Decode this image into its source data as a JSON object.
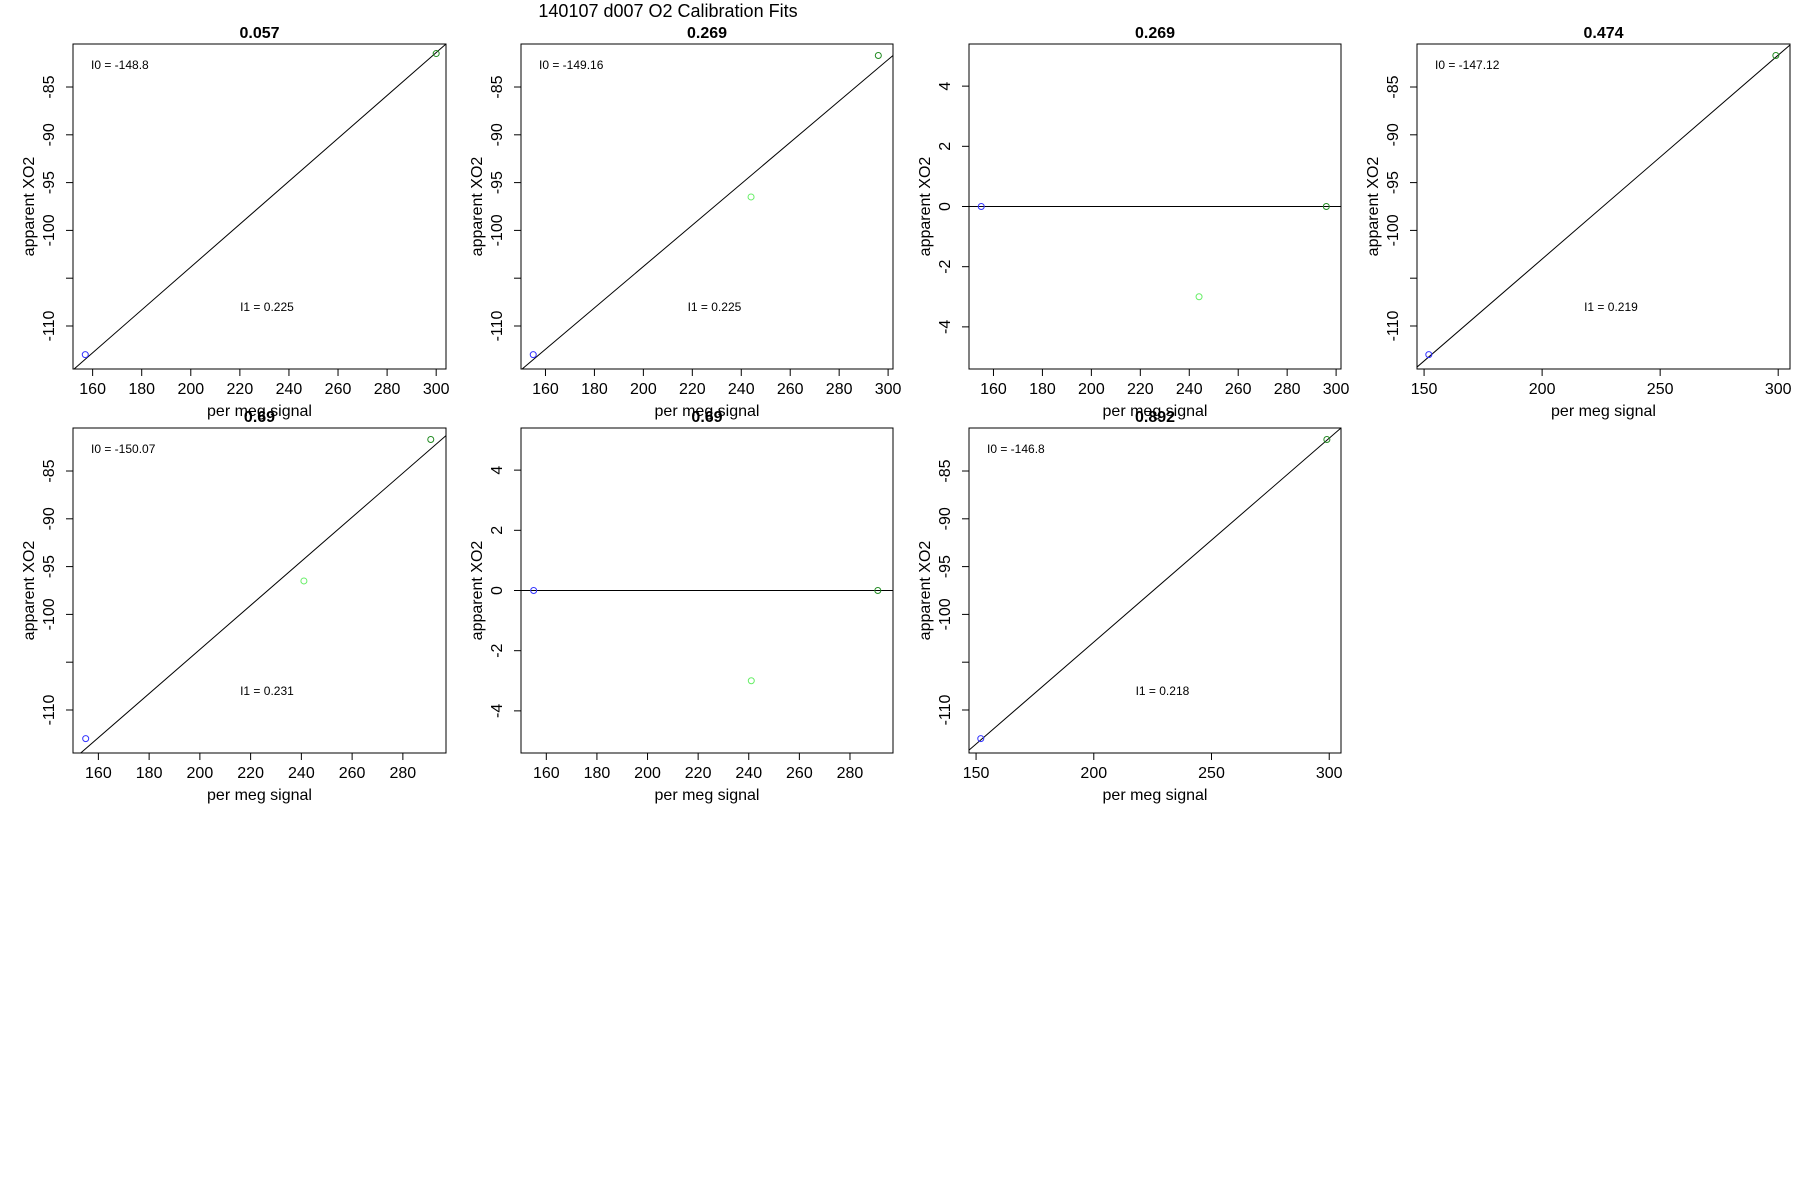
{
  "figure": {
    "title": "140107   d007   O2 Calibration Fits"
  },
  "chart_data": [
    {
      "type": "scatter",
      "title": "0.057",
      "xlabel": "per meg signal",
      "ylabel": "apparent XO2",
      "xlim": [
        152,
        304
      ],
      "ylim": [
        -114.5,
        -80.5
      ],
      "xticks": [
        160,
        180,
        200,
        220,
        240,
        260,
        280,
        300
      ],
      "yticks": [
        -110,
        -105,
        -100,
        -95,
        -90,
        -85
      ],
      "ytick_labels": [
        "-110",
        "",
        "-100",
        "-95",
        "-90",
        "-85"
      ],
      "points": [
        {
          "x": 157,
          "y": -113,
          "color": "#3333ff"
        },
        {
          "x": 300,
          "y": -81.5,
          "color": "#228b22"
        }
      ],
      "fit_line": {
        "x": [
          152,
          304
        ],
        "y": [
          -114.6,
          -80.5
        ]
      },
      "annotations": {
        "i0": "I0 =  -148.8",
        "i1": "I1 =  0.225"
      }
    },
    {
      "type": "scatter",
      "title": "0.269",
      "xlabel": "per meg signal",
      "ylabel": "apparent XO2",
      "xlim": [
        150,
        302
      ],
      "ylim": [
        -114.5,
        -80.5
      ],
      "xticks": [
        160,
        180,
        200,
        220,
        240,
        260,
        280,
        300
      ],
      "yticks": [
        -110,
        -105,
        -100,
        -95,
        -90,
        -85
      ],
      "ytick_labels": [
        "-110",
        "",
        "-100",
        "-95",
        "-90",
        "-85"
      ],
      "points": [
        {
          "x": 155,
          "y": -113,
          "color": "#3333ff"
        },
        {
          "x": 244,
          "y": -96.5,
          "color": "#66ee66"
        },
        {
          "x": 296,
          "y": -81.7,
          "color": "#228b22"
        }
      ],
      "fit_line": {
        "x": [
          150,
          302
        ],
        "y": [
          -114.6,
          -81.7
        ]
      },
      "annotations": {
        "i0": "I0 =  -149.16",
        "i1": "I1 =  0.225"
      }
    },
    {
      "type": "scatter",
      "title": "0.269",
      "xlabel": "per meg signal",
      "ylabel": "apparent XO2",
      "xlim": [
        150,
        302
      ],
      "ylim": [
        -5.4,
        5.4
      ],
      "xticks": [
        160,
        180,
        200,
        220,
        240,
        260,
        280,
        300
      ],
      "yticks": [
        -4,
        -2,
        0,
        2,
        4
      ],
      "ytick_labels": [
        "-4",
        "-2",
        "0",
        "2",
        "4"
      ],
      "points": [
        {
          "x": 155,
          "y": 0,
          "color": "#3333ff"
        },
        {
          "x": 244,
          "y": -3,
          "color": "#66ee66"
        },
        {
          "x": 296,
          "y": 0,
          "color": "#228b22"
        }
      ],
      "fit_line": {
        "x": [
          150,
          302
        ],
        "y": [
          0,
          0
        ]
      },
      "annotations": {
        "i0": "",
        "i1": ""
      }
    },
    {
      "type": "scatter",
      "title": "0.474",
      "xlabel": "per meg signal",
      "ylabel": "apparent XO2",
      "xlim": [
        147,
        305
      ],
      "ylim": [
        -114.5,
        -80.5
      ],
      "xticks": [
        150,
        200,
        250,
        300
      ],
      "yticks": [
        -110,
        -105,
        -100,
        -95,
        -90,
        -85
      ],
      "ytick_labels": [
        "-110",
        "",
        "-100",
        "-95",
        "-90",
        "-85"
      ],
      "points": [
        {
          "x": 152,
          "y": -113,
          "color": "#3333ff"
        },
        {
          "x": 299,
          "y": -81.7,
          "color": "#228b22"
        }
      ],
      "fit_line": {
        "x": [
          147,
          305
        ],
        "y": [
          -114.3,
          -80.6
        ]
      },
      "annotations": {
        "i0": "I0 =  -147.12",
        "i1": "I1 =  0.219"
      }
    },
    {
      "type": "scatter",
      "title": "0.69",
      "xlabel": "per meg signal",
      "ylabel": "apparent XO2",
      "xlim": [
        150,
        297
      ],
      "ylim": [
        -114.5,
        -80.5
      ],
      "xticks": [
        160,
        180,
        200,
        220,
        240,
        260,
        280
      ],
      "yticks": [
        -110,
        -105,
        -100,
        -95,
        -90,
        -85
      ],
      "ytick_labels": [
        "-110",
        "",
        "-100",
        "-95",
        "-90",
        "-85"
      ],
      "points": [
        {
          "x": 155,
          "y": -113,
          "color": "#3333ff"
        },
        {
          "x": 241,
          "y": -96.5,
          "color": "#66ee66"
        },
        {
          "x": 291,
          "y": -81.7,
          "color": "#228b22"
        }
      ],
      "fit_line": {
        "x": [
          150,
          297
        ],
        "y": [
          -115.2,
          -81.3
        ]
      },
      "annotations": {
        "i0": "I0 =  -150.07",
        "i1": "I1 =  0.231"
      }
    },
    {
      "type": "scatter",
      "title": "0.69",
      "xlabel": "per meg signal",
      "ylabel": "apparent XO2",
      "xlim": [
        150,
        297
      ],
      "ylim": [
        -5.4,
        5.4
      ],
      "xticks": [
        160,
        180,
        200,
        220,
        240,
        260,
        280
      ],
      "yticks": [
        -4,
        -2,
        0,
        2,
        4
      ],
      "ytick_labels": [
        "-4",
        "-2",
        "0",
        "2",
        "4"
      ],
      "points": [
        {
          "x": 155,
          "y": 0,
          "color": "#3333ff"
        },
        {
          "x": 241,
          "y": -3,
          "color": "#66ee66"
        },
        {
          "x": 291,
          "y": 0,
          "color": "#228b22"
        }
      ],
      "fit_line": {
        "x": [
          150,
          297
        ],
        "y": [
          0,
          0
        ]
      },
      "annotations": {
        "i0": "",
        "i1": ""
      }
    },
    {
      "type": "scatter",
      "title": "0.892",
      "xlabel": "per meg signal",
      "ylabel": "apparent XO2",
      "xlim": [
        147,
        305
      ],
      "ylim": [
        -114.5,
        -80.5
      ],
      "xticks": [
        150,
        200,
        250,
        300
      ],
      "yticks": [
        -110,
        -105,
        -100,
        -95,
        -90,
        -85
      ],
      "ytick_labels": [
        "-110",
        "",
        "-100",
        "-95",
        "-90",
        "-85"
      ],
      "points": [
        {
          "x": 152,
          "y": -113,
          "color": "#3333ff"
        },
        {
          "x": 299,
          "y": -81.7,
          "color": "#228b22"
        }
      ],
      "fit_line": {
        "x": [
          147,
          305
        ],
        "y": [
          -114.2,
          -80.5
        ]
      },
      "annotations": {
        "i0": "I0 =  -146.8",
        "i1": "I1 =  0.218"
      }
    }
  ]
}
